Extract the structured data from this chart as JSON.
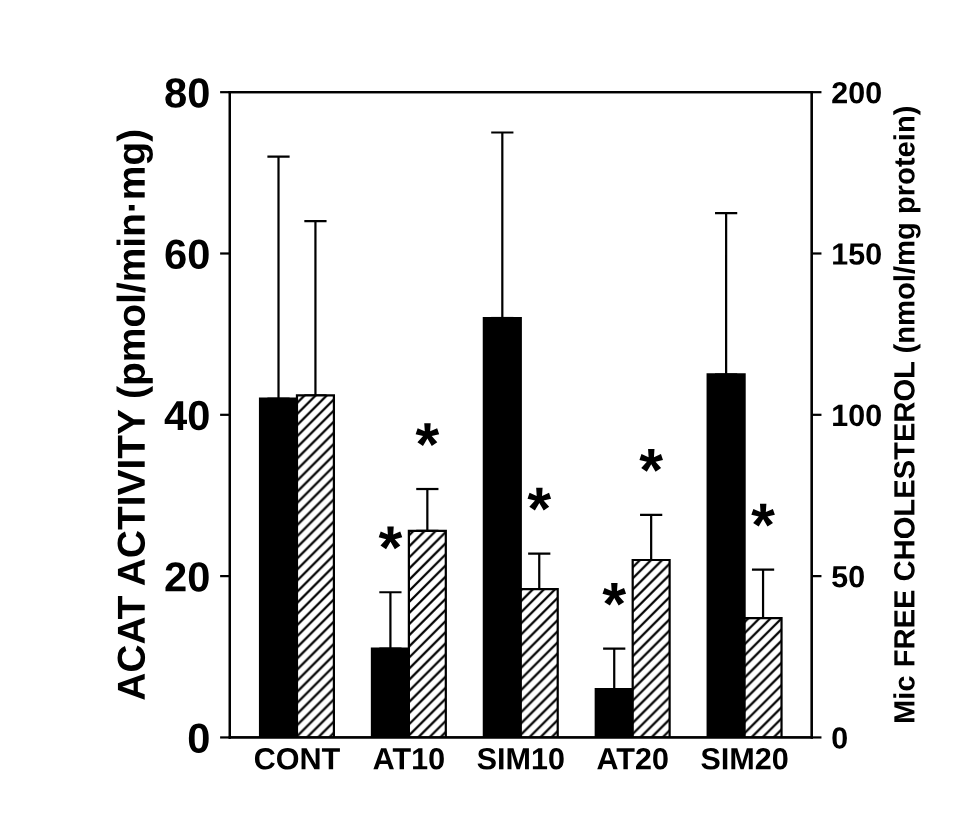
{
  "chart_data": {
    "type": "bar",
    "ylabel": "ACAT ACTIVITY (pmol/min·mg)",
    "y2label": "Mic FREE CHOLESTEROL (nmol/mg protein)",
    "categories": [
      "CONT",
      "AT10",
      "SIM10",
      "AT20",
      "SIM20"
    ],
    "series": [
      {
        "color": "#000000",
        "values": [
          42,
          11,
          52,
          6,
          45
        ],
        "errors": [
          [
            42,
            72
          ],
          [
            11,
            18
          ],
          [
            52,
            75
          ],
          [
            6,
            11
          ],
          [
            45,
            65
          ]
        ]
      },
      {
        "color": "#000000",
        "axis": "y2",
        "values": [
          106,
          64,
          46,
          55,
          37
        ],
        "errors": [
          [
            106,
            160
          ],
          [
            64,
            77
          ],
          [
            46,
            57
          ],
          [
            55,
            69
          ],
          [
            37,
            52
          ]
        ]
      }
    ],
    "ylim": [
      0,
      80
    ],
    "yticks": [
      0,
      20,
      40,
      60,
      80
    ],
    "y2lim": [
      0,
      200
    ],
    "y2ticks": [
      0,
      50,
      100,
      150,
      200
    ],
    "annotations": [
      {
        "text": "*",
        "x": "AT10",
        "y": 18
      },
      {
        "text": "*",
        "x": "AT10",
        "y": 30.8
      },
      {
        "text": "*",
        "x": "SIM10",
        "y": 22.8
      },
      {
        "text": "*",
        "x": "AT20",
        "y": 11
      },
      {
        "text": "*",
        "x": "AT20",
        "y": 27.6
      },
      {
        "text": "*",
        "x": "SIM20",
        "y": 20.8
      }
    ],
    "grid": false,
    "legend": false
  }
}
